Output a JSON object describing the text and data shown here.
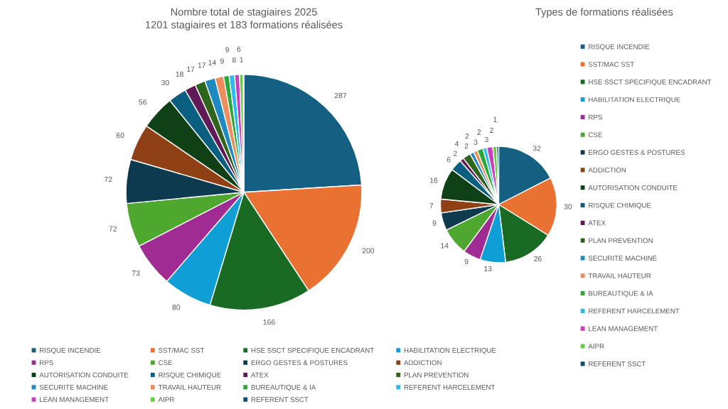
{
  "chart_data": [
    {
      "type": "pie",
      "title": "Nombre total de stagiaires 2025",
      "subtitle": "1201 stagiaires et 183 formations réalisées",
      "categories": [
        "RISQUE INCENDIE",
        "SST/MAC SST",
        "HSE SSCT SPECIFIQUE ENCADRANT",
        "HABILITATION ELECTRIQUE",
        "RPS",
        "CSE",
        "ERGO GESTES & POSTURES",
        "ADDICTION",
        "AUTORISATION CONDUITE",
        "RISQUE CHIMIQUE",
        "ATEX",
        "PLAN PREVENTION",
        "SECURITE MACHINE",
        "TRAVAIL HAUTEUR",
        "BUREAUTIQUE & IA",
        "REFERENT HARCELEMENT",
        "LEAN MANAGEMENT",
        "AIPR",
        "REFERENT SSCT"
      ],
      "values": [
        287,
        200,
        166,
        80,
        73,
        72,
        72,
        60,
        56,
        30,
        18,
        17,
        17,
        14,
        9,
        9,
        8,
        6,
        1
      ],
      "colors": [
        "#156082",
        "#e97132",
        "#196b24",
        "#0f9ed5",
        "#a02b93",
        "#4ea72e",
        "#0d3a4e",
        "#8f4015",
        "#0f4016",
        "#095f80",
        "#601a58",
        "#2f641c",
        "#1f8ac0",
        "#ed8d5b",
        "#27a838",
        "#2dbaf0",
        "#cb3dbb",
        "#69cc45",
        "#114d68"
      ],
      "data_labels": true,
      "legend": "bottom"
    },
    {
      "type": "pie",
      "title": "Types de formations réalisées",
      "categories": [
        "RISQUE INCENDIE",
        "SST/MAC SST",
        "HSE SSCT SPECIFIQUE ENCADRANT",
        "HABILITATION ELECTRIQUE",
        "RPS",
        "CSE",
        "ERGO GESTES & POSTURES",
        "ADDICTION",
        "AUTORISATION CONDUITE",
        "RISQUE CHIMIQUE",
        "ATEX",
        "PLAN PREVENTION",
        "SECURITE MACHINE",
        "TRAVAIL HAUTEUR",
        "BUREAUTIQUE & IA",
        "REFERENT HARCELEMENT",
        "LEAN MANAGEMENT",
        "AIPR",
        "REFERENT SSCT"
      ],
      "values": [
        32,
        30,
        26,
        13,
        9,
        14,
        9,
        7,
        16,
        6,
        2,
        4,
        2,
        2,
        3,
        2,
        3,
        2,
        1
      ],
      "colors": [
        "#156082",
        "#e97132",
        "#196b24",
        "#0f9ed5",
        "#a02b93",
        "#4ea72e",
        "#0d3a4e",
        "#8f4015",
        "#0f4016",
        "#095f80",
        "#601a58",
        "#2f641c",
        "#1f8ac0",
        "#ed8d5b",
        "#27a838",
        "#2dbaf0",
        "#cb3dbb",
        "#69cc45",
        "#114d68"
      ],
      "data_labels": true,
      "legend": "right"
    }
  ]
}
